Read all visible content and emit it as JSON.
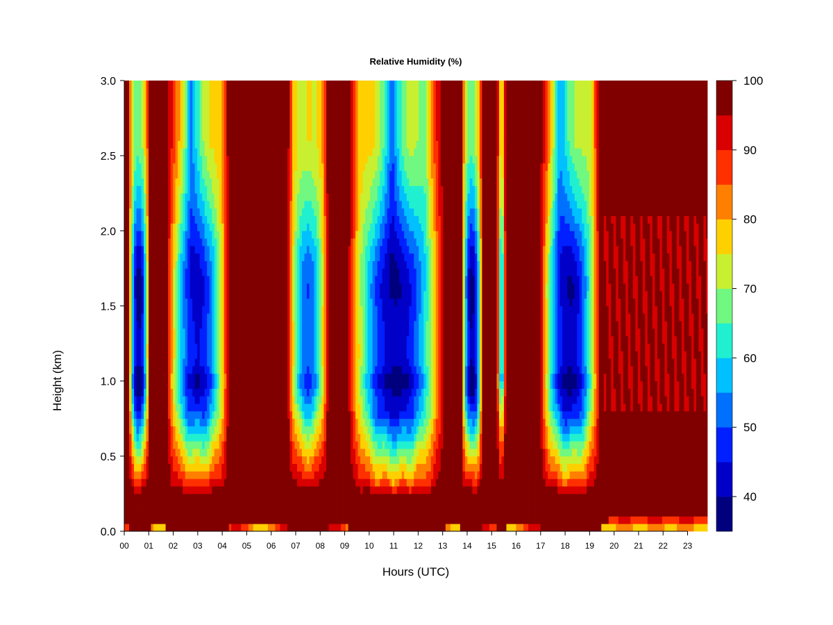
{
  "chart_data": {
    "type": "heatmap",
    "title": "Relative Humidity (%)",
    "xlabel": "Hours (UTC)",
    "ylabel": "Height (km)",
    "xlim": [
      0,
      23.85
    ],
    "ylim": [
      0,
      3.0
    ],
    "x_tick_labels": [
      "00",
      "01",
      "02",
      "03",
      "04",
      "05",
      "06",
      "07",
      "08",
      "09",
      "10",
      "11",
      "12",
      "13",
      "14",
      "15",
      "16",
      "17",
      "18",
      "19",
      "20",
      "21",
      "22",
      "23"
    ],
    "y_ticks": [
      0.0,
      0.5,
      1.0,
      1.5,
      2.0,
      2.5,
      3.0
    ],
    "y_tick_labels": [
      "0.0",
      "0.5",
      "1.0",
      "1.5",
      "2.0",
      "2.5",
      "3.0"
    ],
    "colorbar": {
      "levels": [
        35,
        40,
        45,
        50,
        55,
        60,
        65,
        70,
        75,
        80,
        85,
        90,
        95,
        100
      ],
      "tick_labels": [
        "40",
        "50",
        "60",
        "70",
        "80",
        "90",
        "100"
      ],
      "tick_values": [
        40,
        50,
        60,
        70,
        80,
        90,
        100
      ],
      "colors": [
        "#00007f",
        "#0000c8",
        "#0020ff",
        "#0070ff",
        "#00c0ff",
        "#20f0d0",
        "#70f880",
        "#c8f030",
        "#ffd000",
        "#ff8000",
        "#ff3000",
        "#d80000",
        "#800000"
      ]
    },
    "dry_columns": [
      {
        "center": 0.6,
        "halfwidth": 0.45,
        "min_rh": 40,
        "base": 0.42
      },
      {
        "center": 3.0,
        "halfwidth": 1.3,
        "min_rh": 45,
        "base": 0.38
      },
      {
        "center": 7.5,
        "halfwidth": 0.85,
        "min_rh": 52,
        "base": 0.45
      },
      {
        "center": 11.1,
        "halfwidth": 2.0,
        "min_rh": 42,
        "base": 0.35
      },
      {
        "center": 14.2,
        "halfwidth": 0.45,
        "min_rh": 40,
        "base": 0.42
      },
      {
        "center": 15.4,
        "halfwidth": 0.18,
        "min_rh": 60,
        "base": 0.55
      },
      {
        "center": 18.2,
        "halfwidth": 1.25,
        "min_rh": 42,
        "base": 0.38
      }
    ]
  }
}
